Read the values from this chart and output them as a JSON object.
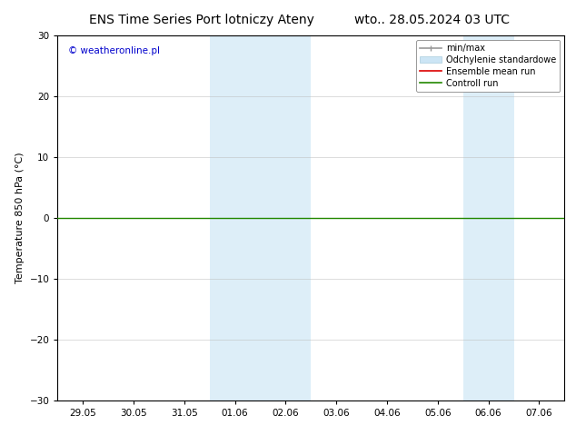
{
  "title_left": "ENS Time Series Port lotniczy Ateny",
  "title_right": "wto.. 28.05.2024 03 UTC",
  "ylabel": "Temperature 850 hPa (°C)",
  "watermark": "© weatheronline.pl",
  "watermark_color": "#0000cc",
  "ylim": [
    -30,
    30
  ],
  "yticks": [
    -30,
    -20,
    -10,
    0,
    10,
    20,
    30
  ],
  "xtick_labels": [
    "29.05",
    "30.05",
    "31.05",
    "01.06",
    "02.06",
    "03.06",
    "04.06",
    "05.06",
    "06.06",
    "07.06"
  ],
  "background_color": "#ffffff",
  "plot_bg_color": "#ffffff",
  "shaded_regions": [
    {
      "xstart": 3,
      "xend": 5,
      "color": "#ddeef8"
    },
    {
      "xstart": 8,
      "xend": 9,
      "color": "#ddeef8"
    }
  ],
  "horizontal_line_y": 0,
  "horizontal_line_color": "#228800",
  "grid_color": "#bbbbbb",
  "grid_linestyle": "-",
  "grid_alpha": 0.7,
  "spine_color": "#000000",
  "title_fontsize": 10,
  "axis_fontsize": 8,
  "tick_fontsize": 7.5,
  "legend_fontsize": 7,
  "fig_width": 6.34,
  "fig_height": 4.9,
  "dpi": 100
}
